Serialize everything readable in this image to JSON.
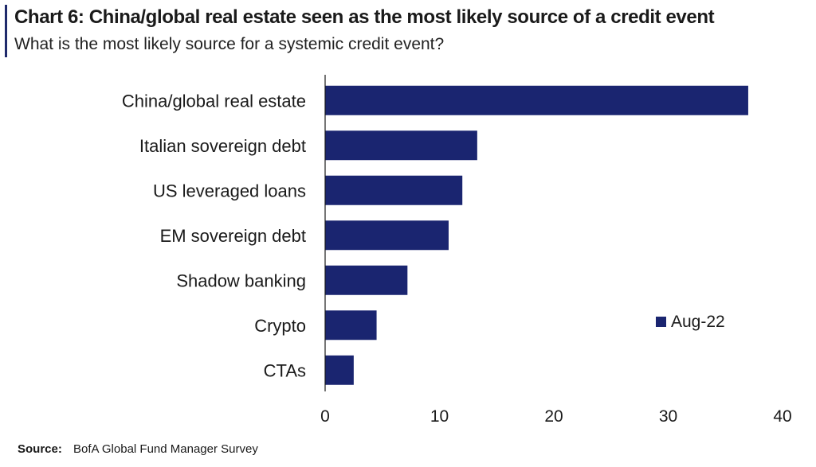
{
  "header": {
    "title": "Chart 6: China/global real estate seen as the most likely source of a credit event",
    "subtitle": "What is the most likely source for a systemic credit event?"
  },
  "footer": {
    "source_label": "Source:",
    "source_text": "BofA Global Fund Manager Survey"
  },
  "chart_data": {
    "type": "bar",
    "orientation": "horizontal",
    "categories": [
      "China/global real estate",
      "Italian sovereign debt",
      "US leveraged loans",
      "EM sovereign debt",
      "Shadow banking",
      "Crypto",
      "CTAs"
    ],
    "series": [
      {
        "name": "Aug-22",
        "values": [
          37,
          13.3,
          12,
          10.8,
          7.2,
          4.5,
          2.5
        ],
        "color": "#1a2570"
      }
    ],
    "xlim": [
      0,
      40
    ],
    "xticks": [
      0,
      10,
      20,
      30,
      40
    ],
    "grid": false,
    "legend_position": "right"
  }
}
